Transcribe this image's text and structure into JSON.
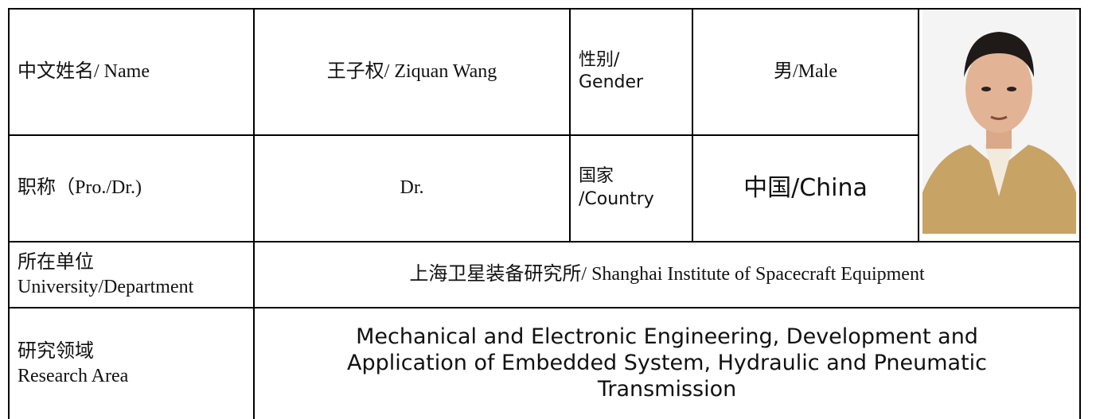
{
  "table": {
    "rows": [
      [
        "中文姓名/ Name",
        "王子权/ Ziquan Wang",
        [
          "性别/",
          "Gender"
        ],
        "男/Male"
      ],
      [
        "职称（Pro./Dr.)",
        "Dr.",
        [
          "国家",
          "/Country"
        ],
        "中国/China"
      ],
      [
        [
          "所在单位",
          "University/Department"
        ],
        "上海卫星装备研究所/ Shanghai Institute of Spacecraft Equipment"
      ],
      [
        [
          "研究领域",
          "Research Area"
        ],
        [
          "Mechanical and Electronic Engineering, Development and",
          "Application of Embedded System, Hydraulic and Pneumatic",
          "Transmission"
        ]
      ]
    ]
  }
}
